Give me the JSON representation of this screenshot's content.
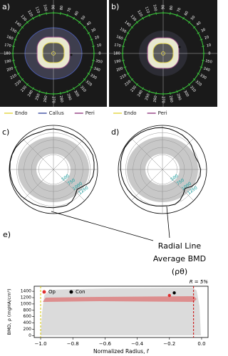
{
  "panels": {
    "a": {
      "label": "a)",
      "angles": [
        0,
        10,
        20,
        30,
        40,
        50,
        60,
        70,
        80,
        90,
        100,
        110,
        120,
        130,
        140,
        150,
        160,
        170,
        180,
        190,
        200,
        210,
        220,
        230,
        240,
        250,
        260,
        270,
        280,
        290,
        300,
        310,
        320,
        330,
        340,
        350
      ],
      "legend": [
        {
          "name": "Endo",
          "color": "#e6d84a"
        },
        {
          "name": "Callus",
          "color": "#4a5aa8"
        },
        {
          "name": "Peri",
          "color": "#9a4a8a"
        }
      ]
    },
    "b": {
      "label": "b)",
      "angles": [
        0,
        10,
        20,
        30,
        40,
        50,
        60,
        70,
        80,
        90,
        100,
        110,
        120,
        130,
        140,
        150,
        160,
        170,
        180,
        190,
        200,
        210,
        220,
        230,
        240,
        250,
        260,
        270,
        280,
        290,
        300,
        310,
        320,
        330,
        340,
        350
      ],
      "legend": [
        {
          "name": "Endo",
          "color": "#e6d84a"
        },
        {
          "name": "Peri",
          "color": "#9a4a8a"
        }
      ]
    },
    "c": {
      "label": "c)",
      "rlim": [
        0,
        1500
      ],
      "rticks": [
        500,
        750,
        1000,
        1250
      ],
      "profile": [
        1380,
        1400,
        1420,
        1400,
        1380,
        1360,
        1350,
        1340,
        1360,
        1380,
        1370,
        1350,
        1380,
        1420,
        1450,
        1480,
        1490,
        1490,
        1480,
        1470,
        1460,
        1440,
        1420,
        1380,
        1360,
        1330,
        1310,
        1300,
        1290,
        1300,
        1250,
        1150,
        1050,
        1150,
        1300,
        1360
      ]
    },
    "d": {
      "label": "d)",
      "rlim": [
        0,
        1500
      ],
      "rticks": [
        500,
        750,
        1000,
        1250
      ],
      "profile": [
        1300,
        1250,
        1200,
        1220,
        1280,
        1320,
        1350,
        1370,
        1400,
        1420,
        1430,
        1440,
        1450,
        1460,
        1470,
        1480,
        1460,
        1440,
        1420,
        1400,
        1380,
        1360,
        1340,
        1320,
        1300,
        1280,
        1260,
        1240,
        1250,
        1260,
        1200,
        1100,
        1000,
        1150,
        1250,
        1300
      ]
    },
    "annotation": [
      "Radial Line",
      "Average BMD",
      "(ρθ)"
    ]
  },
  "chart_data": {
    "type": "scatter",
    "label": "e)",
    "x_label": "Normalized Radius, r̄",
    "y_label": "BMD, ρ (mgHA/cm³)",
    "xlim": [
      -1.04,
      0.04
    ],
    "ylim": [
      -60,
      1560
    ],
    "xticks": [
      {
        "value": -1.0,
        "label": "−1.0"
      },
      {
        "value": -0.8,
        "label": "−0.8"
      },
      {
        "value": -0.6,
        "label": "−0.6"
      },
      {
        "value": -0.4,
        "label": "−0.4"
      },
      {
        "value": -0.2,
        "label": "−0.2"
      },
      {
        "value": 0.0,
        "label": "0.0"
      }
    ],
    "yticks": [
      0,
      200,
      400,
      600,
      800,
      1000,
      1200,
      1400
    ],
    "series": [
      {
        "name": "Op",
        "color": "#e03030",
        "x": [
          -0.2
        ],
        "values": [
          1270
        ]
      },
      {
        "name": "Con",
        "color": "#000000",
        "x": [
          -0.17
        ],
        "values": [
          1350
        ]
      }
    ],
    "vlines": [
      {
        "x": -1.0,
        "color": "#d4c400"
      },
      {
        "x": -0.05,
        "color": "#cc0000"
      }
    ],
    "annotation": "R = 5%",
    "legend": "upper left"
  }
}
